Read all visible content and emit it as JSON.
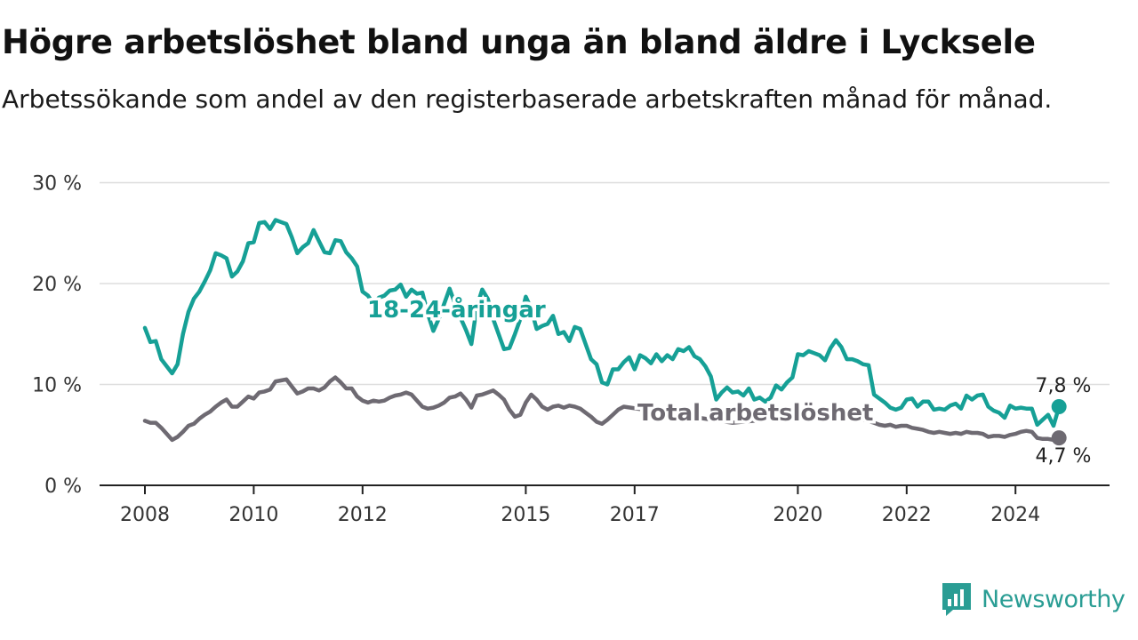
{
  "title": "Högre arbetslöshet bland unga än bland äldre i Lycksele",
  "subtitle": "Arbetssökande som andel av den registerbaserade arbetskraften månad för månad.",
  "brand": "Newsworthy",
  "colors": {
    "youth": "#16a096",
    "total": "#6e6a72",
    "grid": "#dddddd",
    "axis": "#222222"
  },
  "chart_data": {
    "type": "line",
    "title": "Högre arbetslöshet bland unga än bland äldre i Lycksele",
    "subtitle": "Arbetssökande som andel av den registerbaserade arbetskraften månad för månad.",
    "ylim": [
      0,
      30
    ],
    "yticks": [
      0,
      10,
      20,
      30
    ],
    "ytick_labels": [
      "0 %",
      "10 %",
      "20 %",
      "30 %"
    ],
    "xticks": [
      2008,
      2010,
      2012,
      2015,
      2017,
      2020,
      2022,
      2024
    ],
    "xtick_labels": [
      "2008",
      "2010",
      "2012",
      "2015",
      "2017",
      "2020",
      "2022",
      "2024"
    ],
    "grid": true,
    "legend": "none (direct labels on lines)",
    "series": [
      {
        "name": "18-24-åringar",
        "end_label": "7,8 %",
        "points": [
          [
            2008.0,
            15.6
          ],
          [
            2008.1,
            14.2
          ],
          [
            2008.2,
            14.3
          ],
          [
            2008.3,
            12.5
          ],
          [
            2008.5,
            11.1
          ],
          [
            2008.6,
            12.0
          ],
          [
            2008.7,
            15.0
          ],
          [
            2008.8,
            17.2
          ],
          [
            2008.9,
            18.5
          ],
          [
            2009.0,
            19.2
          ],
          [
            2009.1,
            20.2
          ],
          [
            2009.2,
            21.3
          ],
          [
            2009.3,
            23.0
          ],
          [
            2009.4,
            22.8
          ],
          [
            2009.5,
            22.5
          ],
          [
            2009.6,
            20.7
          ],
          [
            2009.7,
            21.2
          ],
          [
            2009.8,
            22.2
          ],
          [
            2009.9,
            24.0
          ],
          [
            2010.0,
            24.1
          ],
          [
            2010.1,
            26.0
          ],
          [
            2010.2,
            26.1
          ],
          [
            2010.3,
            25.4
          ],
          [
            2010.4,
            26.3
          ],
          [
            2010.5,
            26.1
          ],
          [
            2010.6,
            25.9
          ],
          [
            2010.7,
            24.6
          ],
          [
            2010.8,
            23.0
          ],
          [
            2010.9,
            23.6
          ],
          [
            2011.0,
            24.0
          ],
          [
            2011.1,
            25.3
          ],
          [
            2011.2,
            24.2
          ],
          [
            2011.3,
            23.1
          ],
          [
            2011.4,
            23.0
          ],
          [
            2011.5,
            24.3
          ],
          [
            2011.6,
            24.2
          ],
          [
            2011.7,
            23.1
          ],
          [
            2011.8,
            22.5
          ],
          [
            2011.9,
            21.7
          ],
          [
            2012.0,
            19.2
          ],
          [
            2012.1,
            18.8
          ],
          [
            2012.2,
            18.0
          ],
          [
            2012.3,
            18.6
          ],
          [
            2012.4,
            18.8
          ],
          [
            2012.5,
            19.3
          ],
          [
            2012.6,
            19.4
          ],
          [
            2012.7,
            19.9
          ],
          [
            2012.8,
            18.7
          ],
          [
            2012.9,
            19.4
          ],
          [
            2013.0,
            19.0
          ],
          [
            2013.1,
            19.1
          ],
          [
            2013.2,
            17.0
          ],
          [
            2013.3,
            15.3
          ],
          [
            2013.4,
            16.5
          ],
          [
            2013.5,
            18.0
          ],
          [
            2013.6,
            19.5
          ],
          [
            2013.7,
            18.0
          ],
          [
            2013.8,
            16.6
          ],
          [
            2013.9,
            15.4
          ],
          [
            2014.0,
            14.0
          ],
          [
            2014.1,
            17.7
          ],
          [
            2014.2,
            19.4
          ],
          [
            2014.3,
            18.5
          ],
          [
            2014.4,
            16.5
          ],
          [
            2014.5,
            15.0
          ],
          [
            2014.6,
            13.5
          ],
          [
            2014.7,
            13.6
          ],
          [
            2014.8,
            15.0
          ],
          [
            2014.9,
            16.5
          ],
          [
            2015.0,
            18.7
          ],
          [
            2015.1,
            17.5
          ],
          [
            2015.2,
            15.5
          ],
          [
            2015.3,
            15.8
          ],
          [
            2015.4,
            16.0
          ],
          [
            2015.5,
            16.8
          ],
          [
            2015.6,
            15.0
          ],
          [
            2015.7,
            15.2
          ],
          [
            2015.8,
            14.3
          ],
          [
            2015.9,
            15.7
          ],
          [
            2016.0,
            15.5
          ],
          [
            2016.1,
            14.0
          ],
          [
            2016.2,
            12.5
          ],
          [
            2016.3,
            12.0
          ],
          [
            2016.4,
            10.2
          ],
          [
            2016.5,
            10.0
          ],
          [
            2016.6,
            11.5
          ],
          [
            2016.7,
            11.5
          ],
          [
            2016.8,
            12.2
          ],
          [
            2016.9,
            12.7
          ],
          [
            2017.0,
            11.5
          ],
          [
            2017.1,
            12.9
          ],
          [
            2017.2,
            12.6
          ],
          [
            2017.3,
            12.1
          ],
          [
            2017.4,
            13.0
          ],
          [
            2017.5,
            12.3
          ],
          [
            2017.6,
            12.9
          ],
          [
            2017.7,
            12.5
          ],
          [
            2017.8,
            13.5
          ],
          [
            2017.9,
            13.3
          ],
          [
            2018.0,
            13.7
          ],
          [
            2018.1,
            12.8
          ],
          [
            2018.2,
            12.5
          ],
          [
            2018.3,
            11.8
          ],
          [
            2018.4,
            10.8
          ],
          [
            2018.5,
            8.5
          ],
          [
            2018.6,
            9.2
          ],
          [
            2018.7,
            9.7
          ],
          [
            2018.8,
            9.2
          ],
          [
            2018.9,
            9.3
          ],
          [
            2019.0,
            8.9
          ],
          [
            2019.1,
            9.6
          ],
          [
            2019.2,
            8.5
          ],
          [
            2019.3,
            8.7
          ],
          [
            2019.4,
            8.3
          ],
          [
            2019.5,
            8.7
          ],
          [
            2019.6,
            9.9
          ],
          [
            2019.7,
            9.5
          ],
          [
            2019.8,
            10.2
          ],
          [
            2019.9,
            10.7
          ],
          [
            2020.0,
            13.0
          ],
          [
            2020.1,
            12.9
          ],
          [
            2020.2,
            13.3
          ],
          [
            2020.3,
            13.1
          ],
          [
            2020.4,
            12.9
          ],
          [
            2020.5,
            12.4
          ],
          [
            2020.6,
            13.6
          ],
          [
            2020.7,
            14.4
          ],
          [
            2020.8,
            13.7
          ],
          [
            2020.9,
            12.5
          ],
          [
            2021.0,
            12.5
          ],
          [
            2021.1,
            12.3
          ],
          [
            2021.2,
            12.0
          ],
          [
            2021.3,
            11.9
          ],
          [
            2021.4,
            9.0
          ],
          [
            2021.5,
            8.6
          ],
          [
            2021.6,
            8.2
          ],
          [
            2021.7,
            7.7
          ],
          [
            2021.8,
            7.5
          ],
          [
            2021.9,
            7.7
          ],
          [
            2022.0,
            8.5
          ],
          [
            2022.1,
            8.6
          ],
          [
            2022.2,
            7.8
          ],
          [
            2022.3,
            8.3
          ],
          [
            2022.4,
            8.3
          ],
          [
            2022.5,
            7.5
          ],
          [
            2022.6,
            7.6
          ],
          [
            2022.7,
            7.5
          ],
          [
            2022.8,
            7.9
          ],
          [
            2022.9,
            8.1
          ],
          [
            2023.0,
            7.6
          ],
          [
            2023.1,
            8.9
          ],
          [
            2023.2,
            8.5
          ],
          [
            2023.3,
            8.9
          ],
          [
            2023.4,
            9.0
          ],
          [
            2023.5,
            7.8
          ],
          [
            2023.6,
            7.4
          ],
          [
            2023.7,
            7.2
          ],
          [
            2023.8,
            6.7
          ],
          [
            2023.9,
            7.9
          ],
          [
            2024.0,
            7.6
          ],
          [
            2024.1,
            7.7
          ],
          [
            2024.2,
            7.6
          ],
          [
            2024.3,
            7.6
          ],
          [
            2024.4,
            6.0
          ],
          [
            2024.5,
            6.5
          ],
          [
            2024.6,
            7.0
          ],
          [
            2024.7,
            5.9
          ],
          [
            2024.8,
            7.8
          ]
        ]
      },
      {
        "name": "Total arbetslöshet",
        "end_label": "4,7 %",
        "points": [
          [
            2008.0,
            6.4
          ],
          [
            2008.1,
            6.2
          ],
          [
            2008.2,
            6.2
          ],
          [
            2008.3,
            5.7
          ],
          [
            2008.5,
            4.5
          ],
          [
            2008.6,
            4.8
          ],
          [
            2008.7,
            5.3
          ],
          [
            2008.8,
            5.9
          ],
          [
            2008.9,
            6.1
          ],
          [
            2009.0,
            6.6
          ],
          [
            2009.1,
            7.0
          ],
          [
            2009.2,
            7.3
          ],
          [
            2009.3,
            7.8
          ],
          [
            2009.4,
            8.2
          ],
          [
            2009.5,
            8.5
          ],
          [
            2009.6,
            7.8
          ],
          [
            2009.7,
            7.8
          ],
          [
            2009.8,
            8.3
          ],
          [
            2009.9,
            8.8
          ],
          [
            2010.0,
            8.6
          ],
          [
            2010.1,
            9.2
          ],
          [
            2010.2,
            9.3
          ],
          [
            2010.3,
            9.5
          ],
          [
            2010.4,
            10.3
          ],
          [
            2010.5,
            10.4
          ],
          [
            2010.6,
            10.5
          ],
          [
            2010.7,
            9.8
          ],
          [
            2010.8,
            9.1
          ],
          [
            2010.9,
            9.3
          ],
          [
            2011.0,
            9.6
          ],
          [
            2011.1,
            9.6
          ],
          [
            2011.2,
            9.4
          ],
          [
            2011.3,
            9.7
          ],
          [
            2011.4,
            10.3
          ],
          [
            2011.5,
            10.7
          ],
          [
            2011.6,
            10.2
          ],
          [
            2011.7,
            9.6
          ],
          [
            2011.8,
            9.6
          ],
          [
            2011.9,
            8.8
          ],
          [
            2012.0,
            8.4
          ],
          [
            2012.1,
            8.2
          ],
          [
            2012.2,
            8.4
          ],
          [
            2012.3,
            8.3
          ],
          [
            2012.4,
            8.4
          ],
          [
            2012.5,
            8.7
          ],
          [
            2012.6,
            8.9
          ],
          [
            2012.7,
            9.0
          ],
          [
            2012.8,
            9.2
          ],
          [
            2012.9,
            9.0
          ],
          [
            2013.0,
            8.4
          ],
          [
            2013.1,
            7.8
          ],
          [
            2013.2,
            7.6
          ],
          [
            2013.3,
            7.7
          ],
          [
            2013.4,
            7.9
          ],
          [
            2013.5,
            8.2
          ],
          [
            2013.6,
            8.7
          ],
          [
            2013.7,
            8.8
          ],
          [
            2013.8,
            9.1
          ],
          [
            2013.9,
            8.5
          ],
          [
            2014.0,
            7.7
          ],
          [
            2014.1,
            8.9
          ],
          [
            2014.2,
            9.0
          ],
          [
            2014.3,
            9.2
          ],
          [
            2014.4,
            9.4
          ],
          [
            2014.5,
            9.0
          ],
          [
            2014.6,
            8.5
          ],
          [
            2014.7,
            7.5
          ],
          [
            2014.8,
            6.8
          ],
          [
            2014.9,
            7.0
          ],
          [
            2015.0,
            8.2
          ],
          [
            2015.1,
            9.0
          ],
          [
            2015.2,
            8.5
          ],
          [
            2015.3,
            7.8
          ],
          [
            2015.4,
            7.5
          ],
          [
            2015.5,
            7.8
          ],
          [
            2015.6,
            7.9
          ],
          [
            2015.7,
            7.7
          ],
          [
            2015.8,
            7.9
          ],
          [
            2015.9,
            7.8
          ],
          [
            2016.0,
            7.6
          ],
          [
            2016.1,
            7.2
          ],
          [
            2016.2,
            6.8
          ],
          [
            2016.3,
            6.3
          ],
          [
            2016.4,
            6.1
          ],
          [
            2016.5,
            6.5
          ],
          [
            2016.6,
            7.0
          ],
          [
            2016.7,
            7.5
          ],
          [
            2016.8,
            7.8
          ],
          [
            2018.8,
            6.2
          ],
          [
            2020.0,
            6.8
          ],
          [
            2021.2,
            6.5
          ],
          [
            2021.4,
            6.2
          ],
          [
            2021.5,
            6.0
          ],
          [
            2021.6,
            5.9
          ],
          [
            2021.7,
            6.0
          ],
          [
            2021.8,
            5.8
          ],
          [
            2021.9,
            5.9
          ],
          [
            2022.0,
            5.9
          ],
          [
            2022.1,
            5.7
          ],
          [
            2022.2,
            5.6
          ],
          [
            2022.3,
            5.5
          ],
          [
            2022.4,
            5.3
          ],
          [
            2022.5,
            5.2
          ],
          [
            2022.6,
            5.3
          ],
          [
            2022.7,
            5.2
          ],
          [
            2022.8,
            5.1
          ],
          [
            2022.9,
            5.2
          ],
          [
            2023.0,
            5.1
          ],
          [
            2023.1,
            5.3
          ],
          [
            2023.2,
            5.2
          ],
          [
            2023.3,
            5.2
          ],
          [
            2023.4,
            5.1
          ],
          [
            2023.5,
            4.8
          ],
          [
            2023.6,
            4.9
          ],
          [
            2023.7,
            4.9
          ],
          [
            2023.8,
            4.8
          ],
          [
            2023.9,
            5.0
          ],
          [
            2024.0,
            5.1
          ],
          [
            2024.1,
            5.3
          ],
          [
            2024.2,
            5.4
          ],
          [
            2024.3,
            5.3
          ],
          [
            2024.4,
            4.7
          ],
          [
            2024.5,
            4.6
          ],
          [
            2024.6,
            4.6
          ],
          [
            2024.7,
            4.5
          ],
          [
            2024.8,
            4.7
          ]
        ]
      }
    ]
  }
}
